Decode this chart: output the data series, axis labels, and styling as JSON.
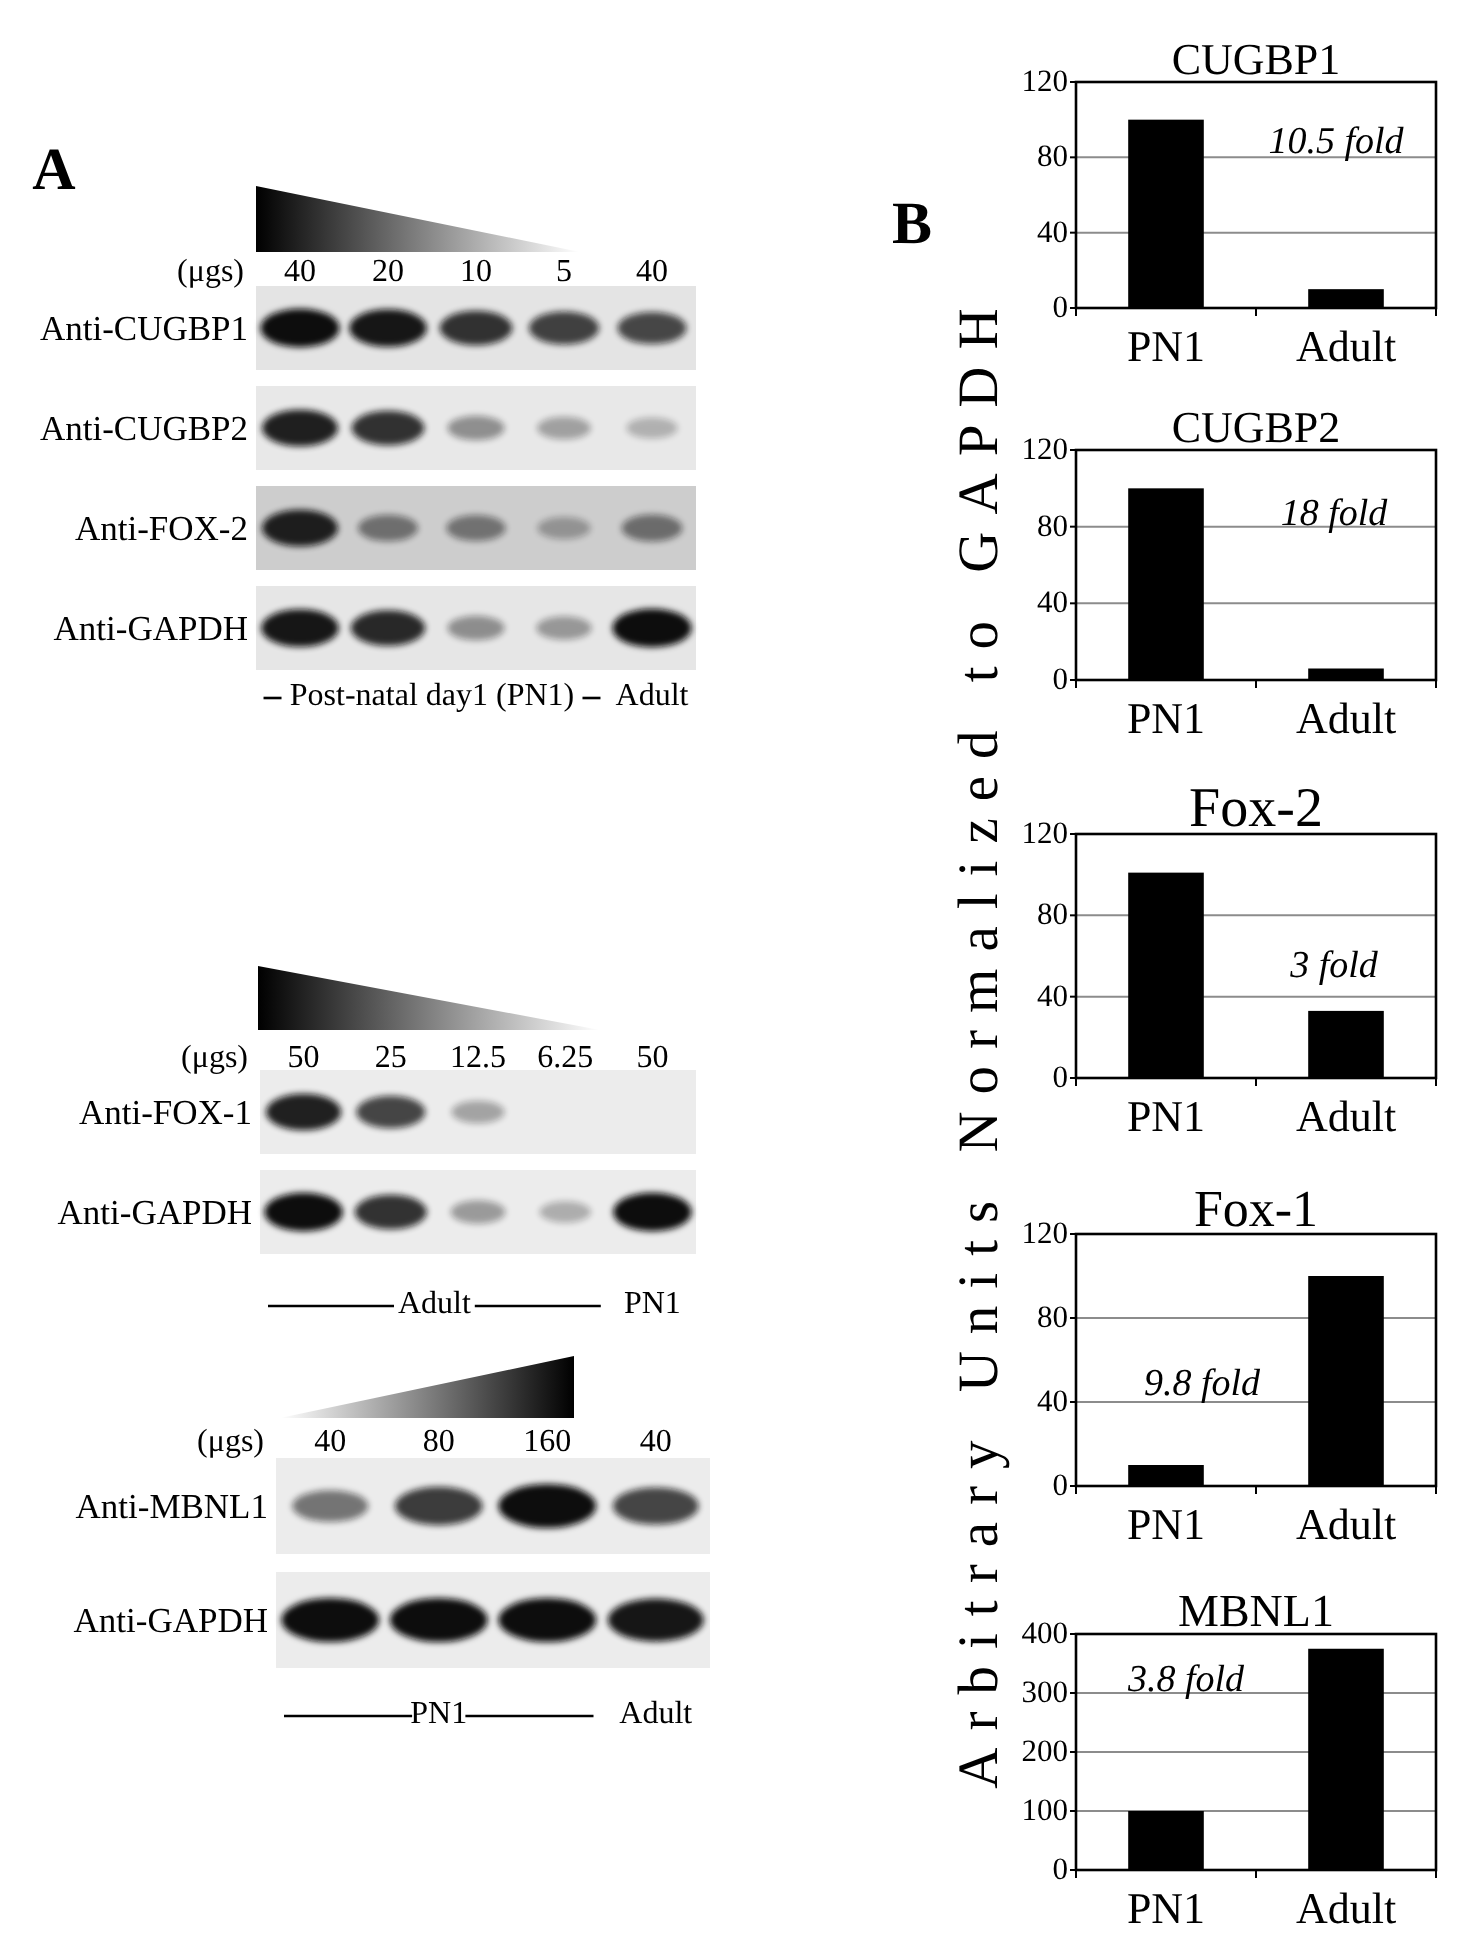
{
  "chart_data": [
    {
      "type": "other",
      "title": "A",
      "annotations": [
        "(μgs)",
        "Post-natal day1 (PN1)",
        "Adult"
      ],
      "categories": [
        "40",
        "20",
        "10",
        "5",
        "40"
      ],
      "y_categories": [
        "Anti-CUGBP1",
        "Anti-CUGBP2",
        "Anti-FOX-2",
        "Anti-GAPDH"
      ]
    },
    {
      "type": "other",
      "annotations": [
        "(μgs)",
        "Adult",
        "PN1"
      ],
      "categories": [
        "50",
        "25",
        "12.5",
        "6.25",
        "50"
      ],
      "y_categories": [
        "Anti-FOX-1",
        "Anti-GAPDH"
      ]
    },
    {
      "type": "other",
      "annotations": [
        "(μgs)",
        "PN1",
        "Adult"
      ],
      "categories": [
        "40",
        "80",
        "160",
        "40"
      ],
      "y_categories": [
        "Anti-MBNL1",
        "Anti-GAPDH"
      ]
    },
    {
      "type": "bar",
      "title": "CUGBP1",
      "categories": [
        "PN1",
        "Adult"
      ],
      "values": [
        100,
        10
      ],
      "color": "#000000",
      "ylim": [
        0,
        120
      ],
      "yticks": [
        0,
        40,
        80,
        120
      ],
      "grid": "y",
      "annotations": [
        "B",
        "10.5 fold"
      ]
    },
    {
      "type": "bar",
      "title": "CUGBP2",
      "categories": [
        "PN1",
        "Adult"
      ],
      "values": [
        100,
        6
      ],
      "color": "#000000",
      "ylim": [
        0,
        120
      ],
      "yticks": [
        0,
        40,
        80,
        120
      ],
      "grid": "y",
      "annotations": [
        "18 fold"
      ]
    },
    {
      "type": "bar",
      "title": "Fox-2",
      "ylabel": "Arbitrary Units Normalized to GAPDH",
      "categories": [
        "PN1",
        "Adult"
      ],
      "values": [
        101,
        33
      ],
      "color": "#000000",
      "ylim": [
        0,
        120
      ],
      "yticks": [
        0,
        40,
        80,
        120
      ],
      "grid": "y",
      "annotations": [
        "3 fold"
      ]
    },
    {
      "type": "bar",
      "title": "Fox-1",
      "categories": [
        "PN1",
        "Adult"
      ],
      "values": [
        10,
        100
      ],
      "color": "#000000",
      "ylim": [
        0,
        120
      ],
      "yticks": [
        0,
        40,
        80,
        120
      ],
      "grid": "y",
      "annotations": [
        "9.8 fold"
      ]
    },
    {
      "type": "bar",
      "title": "MBNL1",
      "categories": [
        "PN1",
        "Adult"
      ],
      "values": [
        100,
        375
      ],
      "color": "#000000",
      "ylim": [
        0,
        400
      ],
      "yticks": [
        0,
        100,
        200,
        300,
        400
      ],
      "grid": "y",
      "annotations": [
        "3.8 fold"
      ]
    }
  ]
}
